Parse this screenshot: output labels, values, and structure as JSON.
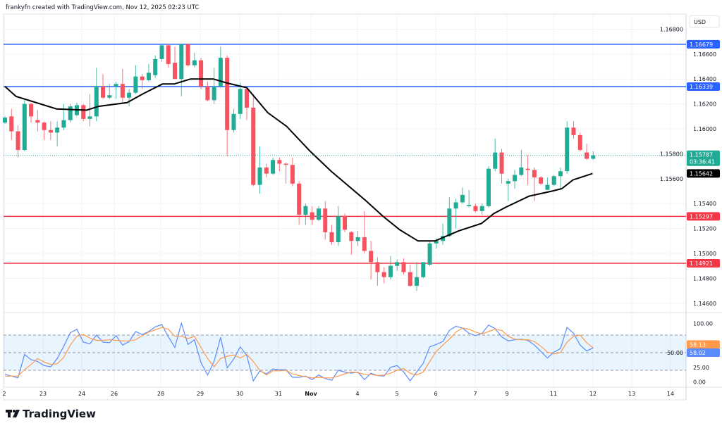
{
  "header": {
    "attribution": "frankyfn created with TradingView.com, Nov 12, 2025 02:23 UTC"
  },
  "currency": "USD",
  "logo_text": "TradingView",
  "colors": {
    "up": "#22ab94",
    "down": "#f7525f",
    "blue_level": "#2962ff",
    "red_level": "#f23645",
    "ma": "#000000",
    "osc_k": "#5b8cff",
    "osc_d": "#ff9a4d",
    "current": "#22ab94"
  },
  "chart_data": {
    "type": "candlestick",
    "title": "",
    "ylim": [
      1.14531,
      1.16921
    ],
    "price_ticks": [
      "1.16800",
      "1.16600",
      "1.16400",
      "1.16200",
      "1.16000",
      "1.15800",
      "1.15600",
      "1.15400",
      "1.15200",
      "1.15000",
      "1.14800",
      "1.14600"
    ],
    "time_labels": [
      "2",
      "23",
      "24",
      "26",
      "28",
      "29",
      "30",
      "31",
      "Nov",
      "4",
      "5",
      "6",
      "7",
      "9",
      "11",
      "12",
      "13",
      "14"
    ],
    "candles": [
      [
        1.1605,
        1.161,
        1.1604,
        1.1609
      ],
      [
        1.161,
        1.1616,
        1.1591,
        1.1598
      ],
      [
        1.1598,
        1.1603,
        1.1577,
        1.1583
      ],
      [
        1.1583,
        1.1623,
        1.1582,
        1.162
      ],
      [
        1.162,
        1.1621,
        1.1605,
        1.161
      ],
      [
        1.1607,
        1.1615,
        1.1598,
        1.1605
      ],
      [
        1.1605,
        1.1606,
        1.1591,
        1.1599
      ],
      [
        1.1599,
        1.1606,
        1.1591,
        1.1597
      ],
      [
        1.1597,
        1.1606,
        1.1586,
        1.1601
      ],
      [
        1.1601,
        1.162,
        1.1599,
        1.1607
      ],
      [
        1.1607,
        1.162,
        1.1605,
        1.1618
      ],
      [
        1.1611,
        1.1621,
        1.161,
        1.1619
      ],
      [
        1.1619,
        1.162,
        1.1606,
        1.1608
      ],
      [
        1.1608,
        1.1628,
        1.1602,
        1.161
      ],
      [
        1.161,
        1.1649,
        1.1606,
        1.1634
      ],
      [
        1.1634,
        1.1644,
        1.1624,
        1.1625
      ],
      [
        1.1625,
        1.1636,
        1.1624,
        1.1627
      ],
      [
        1.1634,
        1.1638,
        1.1624,
        1.1636
      ],
      [
        1.1636,
        1.1648,
        1.162,
        1.1625
      ],
      [
        1.1625,
        1.1632,
        1.1618,
        1.1629
      ],
      [
        1.1629,
        1.1651,
        1.1628,
        1.1642
      ],
      [
        1.1642,
        1.1644,
        1.1632,
        1.1639
      ],
      [
        1.1639,
        1.1652,
        1.1638,
        1.1645
      ],
      [
        1.1643,
        1.1659,
        1.1641,
        1.1656
      ],
      [
        1.1656,
        1.1668,
        1.1654,
        1.1667
      ],
      [
        1.1667,
        1.1668,
        1.1649,
        1.1652
      ],
      [
        1.1653,
        1.1666,
        1.164,
        1.164
      ],
      [
        1.164,
        1.1668,
        1.1626,
        1.1668
      ],
      [
        1.1668,
        1.1668,
        1.165,
        1.1651
      ],
      [
        1.1651,
        1.1661,
        1.1649,
        1.1655
      ],
      [
        1.1655,
        1.1657,
        1.1632,
        1.1634
      ],
      [
        1.1634,
        1.1638,
        1.1622,
        1.1623
      ],
      [
        1.1623,
        1.1649,
        1.162,
        1.1634
      ],
      [
        1.1634,
        1.1666,
        1.1633,
        1.1657
      ],
      [
        1.1657,
        1.1659,
        1.1578,
        1.1599
      ],
      [
        1.1599,
        1.1616,
        1.1597,
        1.1612
      ],
      [
        1.1612,
        1.1637,
        1.1608,
        1.1632
      ],
      [
        1.1632,
        1.1633,
        1.1607,
        1.1617
      ],
      [
        1.1617,
        1.1628,
        1.1554,
        1.1555
      ],
      [
        1.1555,
        1.1586,
        1.1548,
        1.1569
      ],
      [
        1.1569,
        1.1572,
        1.1561,
        1.1564
      ],
      [
        1.1564,
        1.1577,
        1.1563,
        1.1575
      ],
      [
        1.1575,
        1.1577,
        1.1566,
        1.1572
      ],
      [
        1.1572,
        1.1573,
        1.1556,
        1.1571
      ],
      [
        1.1571,
        1.1577,
        1.1554,
        1.1556
      ],
      [
        1.1556,
        1.1558,
        1.1523,
        1.1531
      ],
      [
        1.1531,
        1.154,
        1.1523,
        1.1538
      ],
      [
        1.1533,
        1.1538,
        1.1523,
        1.1527
      ],
      [
        1.1527,
        1.1538,
        1.1526,
        1.1536
      ],
      [
        1.1536,
        1.1542,
        1.1511,
        1.1517
      ],
      [
        1.1517,
        1.1523,
        1.1507,
        1.1509
      ],
      [
        1.1509,
        1.1538,
        1.1506,
        1.153
      ],
      [
        1.153,
        1.1532,
        1.1517,
        1.1519
      ],
      [
        1.1517,
        1.1518,
        1.1499,
        1.151
      ],
      [
        1.151,
        1.1518,
        1.1506,
        1.1513
      ],
      [
        1.1513,
        1.1534,
        1.15,
        1.1502
      ],
      [
        1.1502,
        1.151,
        1.1479,
        1.1493
      ],
      [
        1.1493,
        1.1497,
        1.1474,
        1.1485
      ],
      [
        1.1485,
        1.1489,
        1.1476,
        1.1481
      ],
      [
        1.1481,
        1.1498,
        1.1479,
        1.149
      ],
      [
        1.149,
        1.1495,
        1.1486,
        1.1493
      ],
      [
        1.1493,
        1.1496,
        1.1483,
        1.1485
      ],
      [
        1.1485,
        1.1491,
        1.1473,
        1.1474
      ],
      [
        1.1474,
        1.1493,
        1.147,
        1.1481
      ],
      [
        1.1481,
        1.1493,
        1.148,
        1.1493
      ],
      [
        1.1491,
        1.151,
        1.149,
        1.1508
      ],
      [
        1.1508,
        1.1512,
        1.1504,
        1.151
      ],
      [
        1.151,
        1.1524,
        1.1507,
        1.1514
      ],
      [
        1.1514,
        1.1545,
        1.1513,
        1.1536
      ],
      [
        1.1536,
        1.1544,
        1.152,
        1.1541
      ],
      [
        1.1541,
        1.1553,
        1.154,
        1.1547
      ],
      [
        1.1538,
        1.1551,
        1.1537,
        1.1539
      ],
      [
        1.1538,
        1.154,
        1.1533,
        1.1534
      ],
      [
        1.1534,
        1.154,
        1.1531,
        1.1538
      ],
      [
        1.1538,
        1.157,
        1.1537,
        1.1568
      ],
      [
        1.1568,
        1.1592,
        1.1566,
        1.1581
      ],
      [
        1.1581,
        1.1584,
        1.1556,
        1.1564
      ],
      [
        1.1556,
        1.156,
        1.1542,
        1.1558
      ],
      [
        1.1558,
        1.1567,
        1.1552,
        1.1563
      ],
      [
        1.1563,
        1.1583,
        1.1562,
        1.1569
      ],
      [
        1.1568,
        1.1579,
        1.1555,
        1.1567
      ],
      [
        1.1567,
        1.1569,
        1.1542,
        1.1561
      ],
      [
        1.1561,
        1.1562,
        1.1555,
        1.1556
      ],
      [
        1.1551,
        1.1561,
        1.1551,
        1.1555
      ],
      [
        1.1555,
        1.1563,
        1.1554,
        1.1562
      ],
      [
        1.1562,
        1.1569,
        1.1551,
        1.1566
      ],
      [
        1.1566,
        1.1606,
        1.1564,
        1.1601
      ],
      [
        1.1601,
        1.1606,
        1.1592,
        1.1595
      ],
      [
        1.1595,
        1.1597,
        1.1582,
        1.1583
      ],
      [
        1.1581,
        1.1588,
        1.1575,
        1.1576
      ],
      [
        1.1576,
        1.1582,
        1.1575,
        1.15787
      ]
    ],
    "moving_average": [
      [
        0,
        1.1634
      ],
      [
        1.7,
        1.1626
      ],
      [
        7.9,
        1.1616
      ],
      [
        12.5,
        1.1615
      ],
      [
        14.3,
        1.1618
      ],
      [
        18.7,
        1.1621
      ],
      [
        21.1,
        1.1628
      ],
      [
        24.1,
        1.1636
      ],
      [
        25.9,
        1.1636
      ],
      [
        28.4,
        1.164
      ],
      [
        30.5,
        1.164
      ],
      [
        31.9,
        1.164
      ],
      [
        33.8,
        1.1637
      ],
      [
        37,
        1.1633
      ],
      [
        40.2,
        1.1613
      ],
      [
        43.1,
        1.1602
      ],
      [
        46.7,
        1.1582
      ],
      [
        49.9,
        1.1566
      ],
      [
        55.3,
        1.1542
      ],
      [
        57.8,
        1.153
      ],
      [
        60.4,
        1.1519
      ],
      [
        63.2,
        1.151
      ],
      [
        65.8,
        1.151
      ],
      [
        69.4,
        1.1518
      ],
      [
        72.9,
        1.1524
      ],
      [
        74.8,
        1.1532
      ],
      [
        76.6,
        1.1537
      ],
      [
        80.2,
        1.1546
      ],
      [
        83.7,
        1.155
      ],
      [
        85.2,
        1.1552
      ],
      [
        86.9,
        1.1559
      ],
      [
        89.9,
        1.15642
      ]
    ],
    "levels": [
      {
        "price": "1.16679",
        "kind": "blue"
      },
      {
        "price": "1.16339",
        "kind": "blue"
      },
      {
        "price": "1.15297",
        "kind": "red"
      },
      {
        "price": "1.14921",
        "kind": "red"
      }
    ],
    "current_price": "1.15787",
    "countdown": "03:36:41",
    "ma_value": "1.15642",
    "oscillator": {
      "ylim": [
        -8.8,
        117.2
      ],
      "ticks": [
        "100.00",
        "50.00",
        "25.00",
        "0.00"
      ],
      "bands": [
        80,
        50,
        20
      ],
      "k_value": "58.02",
      "d_value": "58.13",
      "k": [
        13,
        10,
        7,
        47,
        38,
        35,
        28,
        26,
        40,
        61,
        84,
        90,
        68,
        65,
        80,
        68,
        67,
        79,
        63,
        69,
        86,
        81,
        86,
        94,
        98,
        77,
        59,
        100,
        64,
        72,
        33,
        12,
        35,
        76,
        24,
        39,
        60,
        45,
        2,
        19,
        14,
        22,
        21,
        21,
        8,
        8,
        10,
        4,
        12,
        6,
        3,
        20,
        17,
        15,
        17,
        4,
        15,
        11,
        10,
        25,
        28,
        17,
        2,
        17,
        32,
        60,
        64,
        69,
        88,
        95,
        92,
        83,
        79,
        83,
        97,
        91,
        77,
        70,
        72,
        73,
        71,
        63,
        52,
        41,
        51,
        57,
        93,
        83,
        63,
        53,
        58.02
      ],
      "d": [
        10,
        10,
        10,
        21,
        30,
        40,
        34,
        30,
        31,
        42,
        63,
        78,
        81,
        75,
        71,
        71,
        72,
        71,
        70,
        70,
        72,
        79,
        85,
        89,
        93,
        90,
        78,
        78,
        74,
        78,
        59,
        40,
        26,
        40,
        44,
        46,
        41,
        47,
        35,
        20,
        12,
        19,
        19,
        20,
        14,
        11,
        9,
        7,
        8,
        7,
        7,
        10,
        14,
        17,
        16,
        13,
        13,
        11,
        12,
        15,
        20,
        23,
        15,
        12,
        17,
        35,
        52,
        63,
        73,
        85,
        92,
        90,
        85,
        82,
        86,
        90,
        88,
        78,
        73,
        72,
        72,
        69,
        61,
        51,
        48,
        50,
        68,
        78,
        80,
        67,
        58.13
      ]
    }
  }
}
